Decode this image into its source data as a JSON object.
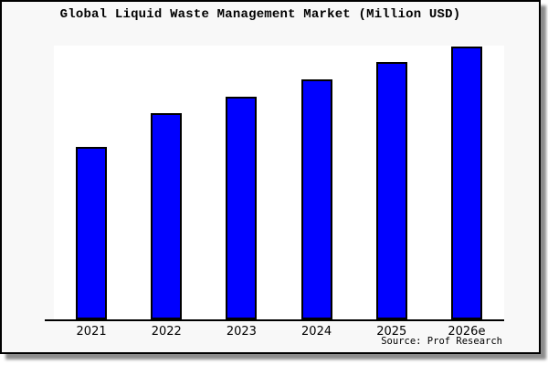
{
  "chart_data": {
    "type": "bar",
    "title": "Global Liquid Waste Management Market (Million USD)",
    "categories": [
      "2021",
      "2022",
      "2023",
      "2024",
      "2025",
      "2026e"
    ],
    "values": [
      63.2,
      75.6,
      81.6,
      88.0,
      94.3,
      100
    ],
    "value_scale": "relative bar height, 2026e = 100 (no y-axis ticks or labels shown in chart)",
    "xlabel": "",
    "ylabel": "",
    "ylim": [
      0,
      100
    ],
    "grid": false,
    "legend": null,
    "bar_color": "#0000ff",
    "bar_border_color": "#000000",
    "source": "Source: Prof Research"
  },
  "page": {
    "background": "#f8f8f8",
    "plot_background": "#ffffff",
    "border_color": "#000000",
    "axis_color": "#000000",
    "text_color": "#000000"
  }
}
